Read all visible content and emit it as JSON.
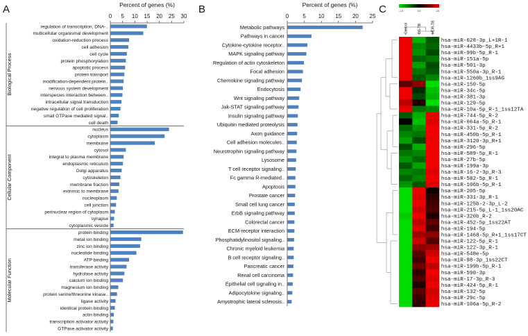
{
  "panel_letters": [
    "A",
    "B",
    "C"
  ],
  "colors": {
    "bar": "#4f81bd",
    "axis": "#555555",
    "heat_low": "#00dd00",
    "heat_mid": "#000000",
    "heat_high": "#ee0000"
  },
  "chart_data": [
    {
      "panel": "A",
      "type": "bar",
      "orientation": "horizontal",
      "title": "Percent of genes (%)",
      "xlim": [
        0,
        30
      ],
      "ticks": [
        0,
        5,
        10,
        15,
        20,
        25,
        30
      ],
      "groups": [
        {
          "name": "Biological Process",
          "categories": [
            "regulation of transcription, DNA-..",
            "multicellular organismal development",
            "oxidation-reduction process",
            "cell adhesion",
            "cell cycle",
            "protein phosphorylation",
            "apoptotic process",
            "protein transport",
            "modification-dependent protein..",
            "nervous system development",
            "interspecies interaction between..",
            "intracellular signal transduction",
            "negative regulation of cell proliferation",
            "small GTPase mediated signal..",
            "cell death"
          ],
          "values": [
            14.8,
            13.3,
            7.5,
            7.2,
            6.6,
            6.2,
            5.9,
            5.6,
            5.3,
            5.0,
            4.8,
            4.4,
            4.0,
            3.3,
            2.8
          ]
        },
        {
          "name": "Cellular Component",
          "categories": [
            "nucleus",
            "cytoplasm",
            "membrane",
            "cytosol",
            "integral to plasma membrane",
            "endoplasmic reticulum",
            "Golgi apparatus",
            "cytoskeleton",
            "membrane fraction",
            "extrinsic to membrane",
            "nucleoplasm",
            "cell junction",
            "perinuclear region of cytoplasm",
            "synapse",
            "cytoplasmic vesicle"
          ],
          "values": [
            23.8,
            22.0,
            18.0,
            6.2,
            5.3,
            5.0,
            4.5,
            4.0,
            3.5,
            3.2,
            2.5,
            2.2,
            1.7,
            1.4,
            1.2
          ]
        },
        {
          "name": "Molecular Function",
          "categories": [
            "protein binding",
            "metal ion binding",
            "zinc ion binding",
            "nucleotide binding",
            "ATP binding",
            "transferase activity",
            "hydrolase activity",
            "calcium ion binding",
            "magnesium ion binding",
            "protein serine/threonine kinase..",
            "ligase activity",
            "identical protein binding",
            "actin binding",
            "transcription activator activity",
            "GTPase activator activity"
          ],
          "values": [
            29.5,
            12.5,
            12.0,
            10.5,
            7.5,
            6.5,
            5.6,
            5.0,
            3.1,
            2.6,
            2.0,
            1.7,
            1.3,
            1.1,
            0.9
          ]
        }
      ]
    },
    {
      "panel": "B",
      "type": "bar",
      "orientation": "horizontal",
      "title": "Percent of genes (%)",
      "xlim": [
        0,
        25
      ],
      "ticks": [
        0,
        5,
        10,
        15,
        20,
        25
      ],
      "categories": [
        "Metabolic pathways",
        "Pathways in cancer",
        "Cytokine-cytokine receptor..",
        "MAPK signaling pathway",
        "Regulation of actin cytoskeleton",
        "Focal adhesion",
        "Chemokine signaling pathway",
        "Endocytosis",
        "Wnt signaling pathway",
        "Jak-STAT signaling pathway",
        "Insulin signaling pathway",
        "Ubiquitin mediated proteolysis",
        "Axon guidance",
        "Cell adhesion molecules..",
        "Neurotrophin signaling pathway",
        "Lysosome",
        "T cell receptor signaling..",
        "Fc gamma R-mediated..",
        "Apoptosis",
        "Prostate cancer",
        "Small cell lung cancer",
        "ErbB signaling pathway",
        "Colorectal cancer",
        "ECM-receptor interaction",
        "Phosphatidylinositol signaling..",
        "Chronic myeloid leukemia",
        "B cell receptor signaling..",
        "Pancreatic cancer",
        "Renal cell carcinoma",
        "Epithelial cell signaling in..",
        "Adipocytokine signaling..",
        "Amyotrophic lateral sclerosis.."
      ],
      "values": [
        22.0,
        7.0,
        5.8,
        5.5,
        4.8,
        4.5,
        4.2,
        3.8,
        3.4,
        3.2,
        3.0,
        2.9,
        2.8,
        2.7,
        2.6,
        2.5,
        2.4,
        2.3,
        2.3,
        2.2,
        2.1,
        2.1,
        2.0,
        2.0,
        1.9,
        1.8,
        1.8,
        1.7,
        1.6,
        1.5,
        1.4,
        1.2
      ]
    },
    {
      "panel": "C",
      "type": "heatmap",
      "columns": [
        "Control",
        "DS-TB",
        "MDR-TB"
      ],
      "color_scale": {
        "min": "-1.5",
        "mid": "0.0",
        "max": "1.5"
      },
      "rows": [
        "hsa-miR-628-3p_L+1R-1",
        "hsa-miR-4433b-5p_R+1",
        "hsa-miR-99b-5p_R-1",
        "hsa-miR-151a-5p",
        "hsa-miR-501-3p",
        "hsa-miR-550a-3p_R-1",
        "hsa-miR-1260b_1ss9AG",
        "hsa-miR-150-5p",
        "hsa-miR-34c-5p",
        "hsa-miR-381-3p",
        "hsa-miR-129-5p",
        "hsa-miR-10a-5p_R-1_1ss12TA",
        "hsa-miR-744-5p_R-2",
        "hsa-miR-664a-5p_R-1",
        "hsa-miR-331-5p_R-2",
        "hsa-miR-450b-5p_R-1",
        "hsa-miR-3120-3p_R+1",
        "hsa-miR-296-5p",
        "hsa-miR-589-5p_R-1",
        "hsa-miR-27b-5p",
        "hsa-miR-199a-3p",
        "hsa-miR-16-2-3p_R-3",
        "hsa-miR-582-5p_R-1",
        "hsa-miR-106b-5p_R-1",
        "hsa-miR-205-5p",
        "hsa-miR-331-3p_R-1",
        "hsa-miR-125b-2-3p_L-2",
        "hsa-miR-215-5p_L-1_1ss20AC",
        "hsa-miR-320b_R-2",
        "hsa-miR-452-5p_1ss22AT",
        "hsa-miR-194-5p",
        "hsa-miR-1468-5p_R+1_1ss17CT",
        "hsa-miR-122-5p_R-1",
        "hsa-miR-122-3p_R-1",
        "hsa-miR-548e-5p",
        "hsa-miR-98-3p_1ss22CT",
        "hsa-miR-199b-5p_R-1",
        "hsa-miR-590-3p",
        "hsa-miR-17-3p_R-3",
        "hsa-miR-424-5p_R-1",
        "hsa-miR-132-5p",
        "hsa-miR-29c-5p",
        "hsa-miR-106a-5p_R-2"
      ],
      "values": [
        [
          1.5,
          -1.2,
          -0.6
        ],
        [
          1.5,
          -0.9,
          -0.7
        ],
        [
          1.5,
          -1.0,
          -0.5
        ],
        [
          1.5,
          -0.7,
          -0.8
        ],
        [
          1.5,
          -1.1,
          -0.5
        ],
        [
          1.5,
          -0.8,
          -0.6
        ],
        [
          1.5,
          -0.6,
          -0.9
        ],
        [
          0.6,
          0.9,
          -1.5
        ],
        [
          1.5,
          -0.3,
          -1.3
        ],
        [
          1.5,
          -0.5,
          -1.2
        ],
        [
          1.2,
          0.2,
          -1.5
        ],
        [
          1.5,
          -0.8,
          -0.9
        ],
        [
          -0.6,
          -1.2,
          1.5
        ],
        [
          0.0,
          -1.3,
          1.4
        ],
        [
          -0.7,
          -1.0,
          1.5
        ],
        [
          -0.9,
          -0.8,
          1.5
        ],
        [
          -1.1,
          -0.5,
          1.5
        ],
        [
          -0.5,
          -1.2,
          1.5
        ],
        [
          -0.8,
          -0.9,
          1.5
        ],
        [
          -1.0,
          -0.7,
          1.5
        ],
        [
          -0.6,
          -1.1,
          1.5
        ],
        [
          -0.9,
          -0.8,
          1.4
        ],
        [
          -0.7,
          -0.9,
          1.5
        ],
        [
          -1.0,
          -0.6,
          1.4
        ],
        [
          -1.5,
          1.5,
          0.1
        ],
        [
          -1.5,
          1.4,
          0.3
        ],
        [
          -1.5,
          1.5,
          0.4
        ],
        [
          -1.5,
          1.3,
          0.5
        ],
        [
          -1.4,
          1.5,
          0.2
        ],
        [
          -1.5,
          1.2,
          0.6
        ],
        [
          -1.5,
          1.4,
          0.4
        ],
        [
          -1.5,
          1.0,
          0.9
        ],
        [
          -1.5,
          1.3,
          0.5
        ],
        [
          -1.5,
          0.9,
          1.0
        ],
        [
          -1.5,
          0.6,
          1.3
        ],
        [
          -1.5,
          0.4,
          1.5
        ],
        [
          -1.5,
          0.7,
          1.2
        ],
        [
          -1.5,
          0.3,
          1.5
        ],
        [
          -1.5,
          0.5,
          1.4
        ],
        [
          -1.5,
          0.2,
          1.5
        ],
        [
          -1.5,
          0.6,
          1.3
        ],
        [
          -1.5,
          0.4,
          1.4
        ],
        [
          -1.5,
          0.3,
          1.5
        ]
      ]
    }
  ]
}
